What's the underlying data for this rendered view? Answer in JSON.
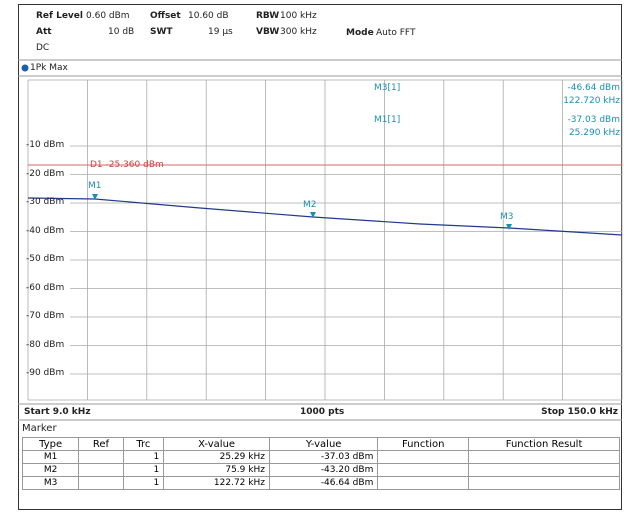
{
  "header": {
    "ref_level_label": "Ref Level",
    "ref_level": "0.60 dBm",
    "offset_label": "Offset",
    "offset": "10.60 dB",
    "rbw_label": "RBW",
    "rbw": "100 kHz",
    "att_label": "Att",
    "att": "10 dB",
    "swt_label": "SWT",
    "swt": "19 µs",
    "vbw_label": "VBW",
    "vbw": "300 kHz",
    "mode_label": "Mode",
    "mode": "Auto FFT",
    "coupling": "DC"
  },
  "trace_label": "1Pk Max",
  "y_labels": [
    "-10 dBm",
    "-20 dBm",
    "-30 dBm",
    "-40 dBm",
    "-50 dBm",
    "-60 dBm",
    "-70 dBm",
    "-80 dBm",
    "-90 dBm"
  ],
  "display_line": "D1 -25.360 dBm",
  "readouts": [
    {
      "name": "M3[1]",
      "y": "-46.64 dBm",
      "x": "122.720 kHz"
    },
    {
      "name": "M1[1]",
      "y": "-37.03 dBm",
      "x": "25.290 kHz"
    }
  ],
  "marker_labels": [
    "M1",
    "M2",
    "M3"
  ],
  "footer": {
    "start": "Start 9.0 kHz",
    "points": "1000 pts",
    "stop": "Stop 150.0 kHz"
  },
  "table": {
    "title": "Marker",
    "columns": [
      "Type",
      "Ref",
      "Trc",
      "X-value",
      "Y-value",
      "Function",
      "Function Result"
    ],
    "rows": [
      [
        "M1",
        "",
        "1",
        "25.29 kHz",
        "-37.03 dBm",
        "",
        ""
      ],
      [
        "M2",
        "",
        "1",
        "75.9 kHz",
        "-43.20 dBm",
        "",
        ""
      ],
      [
        "M3",
        "",
        "1",
        "122.72 kHz",
        "-46.64 dBm",
        "",
        ""
      ]
    ]
  }
}
